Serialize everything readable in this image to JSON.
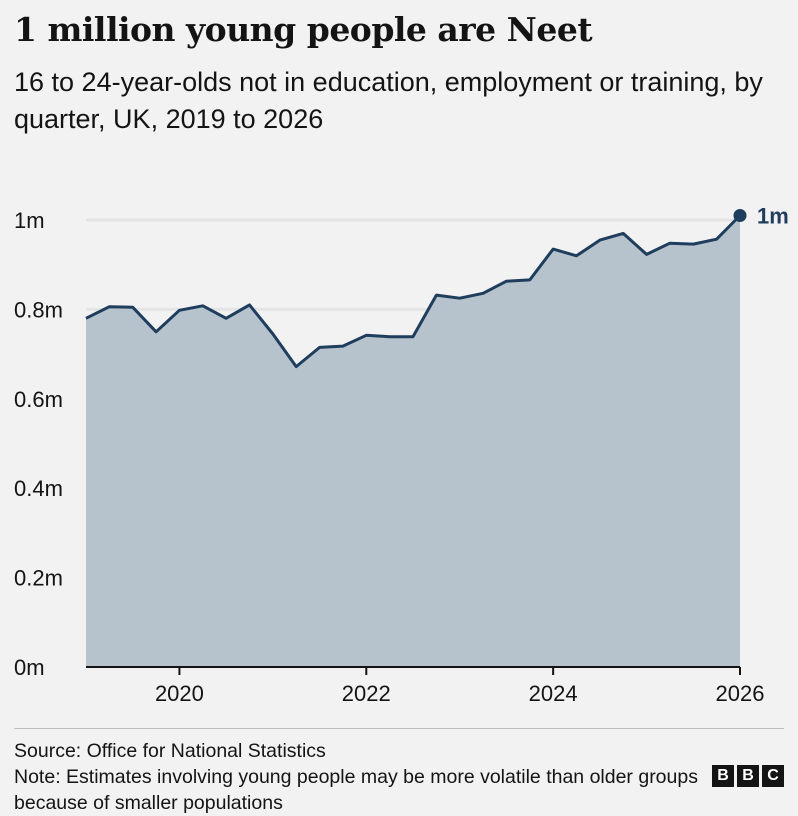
{
  "header": {
    "title": "1 million young people are Neet",
    "subtitle": "16 to 24-year-olds not in education, employment or training, by quarter, UK, 2019 to 2026"
  },
  "chart_data": {
    "type": "area",
    "title": "1 million young people are Neet",
    "subtitle": "16 to 24-year-olds not in education, employment or training, by quarter, UK, 2019 to 2026",
    "xlabel": "",
    "ylabel": "",
    "x_ticks": [
      "2020",
      "2022",
      "2024",
      "2026"
    ],
    "y_ticks": [
      "0m",
      "0.2m",
      "0.4m",
      "0.6m",
      "0.8m",
      "1m"
    ],
    "xlim": [
      2019.0,
      2026.0
    ],
    "ylim": [
      0,
      1.0
    ],
    "grid": true,
    "colors": {
      "line": "#1f3d5c",
      "fill": "#b6c3cd",
      "grid": "#e4e4e4",
      "axis": "#141414"
    },
    "series": [
      {
        "x": [
          2019.0,
          2019.25,
          2019.5,
          2019.75,
          2020.0,
          2020.25,
          2020.5,
          2020.75,
          2021.0,
          2021.25,
          2021.5,
          2021.75,
          2022.0,
          2022.25,
          2022.5,
          2022.75,
          2023.0,
          2023.25,
          2023.5,
          2023.75,
          2024.0,
          2024.25,
          2024.5,
          2024.75,
          2025.0,
          2025.25,
          2025.5,
          2025.75,
          2026.0
        ],
        "values": [
          0.78,
          0.806,
          0.805,
          0.75,
          0.798,
          0.808,
          0.78,
          0.81,
          0.745,
          0.672,
          0.715,
          0.718,
          0.742,
          0.739,
          0.739,
          0.832,
          0.825,
          0.836,
          0.863,
          0.866,
          0.935,
          0.92,
          0.955,
          0.97,
          0.923,
          0.948,
          0.946,
          0.957,
          1.01
        ]
      }
    ],
    "end_label": "1m"
  },
  "footer": {
    "source": "Source: Office for National Statistics",
    "note": "Note: Estimates involving young people may be more volatile than older groups because of smaller populations"
  },
  "logo": {
    "letters": [
      "B",
      "B",
      "C"
    ]
  }
}
